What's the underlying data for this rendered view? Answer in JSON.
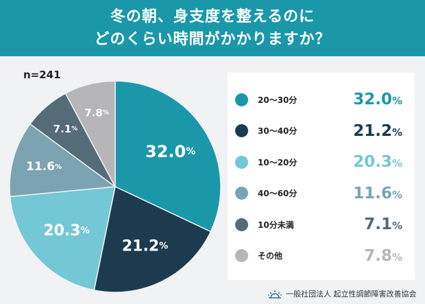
{
  "title": {
    "line1": "冬の朝、身支度を整えるのに",
    "line2": "どのくらい時間がかかりますか？"
  },
  "sample_size": "n=241",
  "colors": {
    "header": "#1a98a9",
    "s20_30": "#1a98a9",
    "s30_40": "#1c3b4f",
    "s10_20": "#74c7d5",
    "s40_60": "#7ba3b2",
    "s10under": "#546b78",
    "sother": "#b6b6b8"
  },
  "chart_data": {
    "type": "pie",
    "slices": [
      {
        "label": "20〜30分",
        "value": 32.0,
        "display": "32.0",
        "color": "#1a98a9",
        "text_color": "#1a98a9"
      },
      {
        "label": "30〜40分",
        "value": 21.2,
        "display": "21.2",
        "color": "#1c3b4f",
        "text_color": "#1c3b4f"
      },
      {
        "label": "10〜20分",
        "value": 20.3,
        "display": "20.3",
        "color": "#74c7d5",
        "text_color": "#74c7d5"
      },
      {
        "label": "40〜60分",
        "value": 11.6,
        "display": "11.6",
        "color": "#7ba3b2",
        "text_color": "#7ba3b2"
      },
      {
        "label": "10分未満",
        "value": 7.1,
        "display": "7.1",
        "color": "#546b78",
        "text_color": "#546b78"
      },
      {
        "label": "その他",
        "value": 7.8,
        "display": "7.8",
        "color": "#b6b6b8",
        "text_color": "#b6b6b8"
      }
    ],
    "unit": "%",
    "start": "top",
    "direction": "clockwise"
  },
  "footer": {
    "org": "一般社団法人 起立性調節障害改善協会"
  }
}
